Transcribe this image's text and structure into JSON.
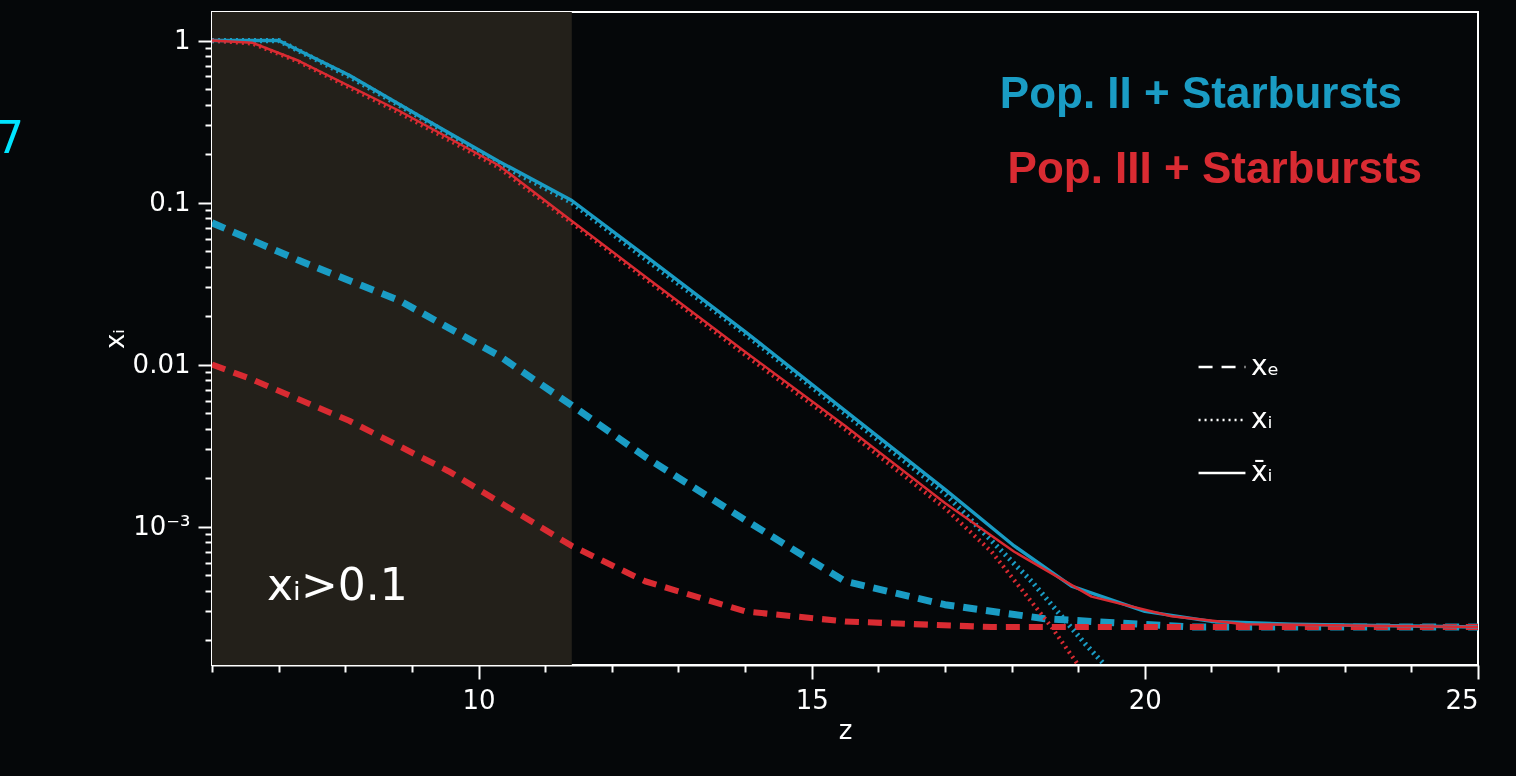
{
  "chart_data": {
    "type": "line",
    "xlabel": "z",
    "ylabel": "xᵢ",
    "log": "y",
    "xlim": [
      6,
      25
    ],
    "ylim": [
      0.00014,
      1.5
    ],
    "xticks": [
      {
        "value": 6,
        "label": null
      },
      {
        "value": 7,
        "label": null
      },
      {
        "value": 8,
        "label": null
      },
      {
        "value": 9,
        "label": null
      },
      10,
      {
        "value": 11,
        "label": null
      },
      {
        "value": 12,
        "label": null
      },
      {
        "value": 13,
        "label": null
      },
      {
        "value": 14,
        "label": null
      },
      15,
      {
        "value": 16,
        "label": null
      },
      {
        "value": 17,
        "label": null
      },
      {
        "value": 18,
        "label": null
      },
      {
        "value": 19,
        "label": null
      },
      20,
      {
        "value": 21,
        "label": null
      },
      {
        "value": 22,
        "label": null
      },
      {
        "value": 23,
        "label": null
      },
      {
        "value": 24,
        "label": null
      },
      25
    ],
    "yticks": [
      {
        "value": 0.0002,
        "label": null
      },
      {
        "value": 0.0003,
        "label": null
      },
      {
        "value": 0.0004,
        "label": null
      },
      {
        "value": 0.0005,
        "label": null
      },
      {
        "value": 0.0006,
        "label": null
      },
      {
        "value": 0.0007,
        "label": null
      },
      {
        "value": 0.0008,
        "label": null
      },
      {
        "value": 0.0009,
        "label": null
      },
      {
        "value": 0.001,
        "label": "10⁻³"
      },
      {
        "value": 0.002,
        "label": null
      },
      {
        "value": 0.003,
        "label": null
      },
      {
        "value": 0.004,
        "label": null
      },
      {
        "value": 0.005,
        "label": null
      },
      {
        "value": 0.006,
        "label": null
      },
      {
        "value": 0.007,
        "label": null
      },
      {
        "value": 0.008,
        "label": null
      },
      {
        "value": 0.009,
        "label": null
      },
      0.01,
      {
        "value": 0.02,
        "label": null
      },
      {
        "value": 0.03,
        "label": null
      },
      {
        "value": 0.04,
        "label": null
      },
      {
        "value": 0.05,
        "label": null
      },
      {
        "value": 0.06,
        "label": null
      },
      {
        "value": 0.07,
        "label": null
      },
      {
        "value": 0.08,
        "label": null
      },
      {
        "value": 0.09,
        "label": null
      },
      0.1,
      {
        "value": 0.2,
        "label": null
      },
      {
        "value": 0.3,
        "label": null
      },
      {
        "value": 0.4,
        "label": null
      },
      {
        "value": 0.5,
        "label": null
      },
      {
        "value": 0.6,
        "label": null
      },
      {
        "value": 0.7,
        "label": null
      },
      {
        "value": 0.8,
        "label": null
      },
      {
        "value": 0.9,
        "label": null
      },
      1
    ],
    "marker": "none",
    "bands": [
      {
        "axis": "x",
        "from": 6,
        "to": 11.4,
        "color": "#23201a"
      }
    ],
    "annotations": [
      "Pop. II + Starbursts",
      "Pop. III + Starbursts",
      "7",
      "xᵢ>0.1",
      "xₑ",
      "xᵢ",
      "x̄ᵢ"
    ],
    "series": [
      {
        "color": "#1a9cc4",
        "line_style": "dashed",
        "x": [
          6,
          7.3,
          8.8,
          10.3,
          11.4,
          12.5,
          14,
          15.5,
          17,
          18.5,
          20.7,
          25
        ],
        "values": [
          0.075,
          0.044,
          0.025,
          0.0114,
          0.0056,
          0.0027,
          0.0011,
          0.00046,
          0.00033,
          0.00027,
          0.00024,
          0.00024
        ]
      },
      {
        "color": "#d92b32",
        "line_style": "dashed",
        "x": [
          6,
          6.57,
          8.06,
          9.55,
          11.4,
          12.5,
          14,
          15.5,
          17.7,
          25
        ],
        "values": [
          0.01,
          0.0082,
          0.0045,
          0.0022,
          0.00076,
          0.00046,
          0.0003,
          0.00026,
          0.00024,
          0.00024
        ]
      },
      {
        "color": "#1a9cc4",
        "line_style": "dotted",
        "x": [
          6,
          7,
          8.06,
          9.1,
          10.3,
          11.4,
          12.5,
          14,
          15.5,
          17,
          18.3,
          19.1,
          19.4
        ],
        "values": [
          1,
          1,
          0.6,
          0.34,
          0.175,
          0.1,
          0.045,
          0.0155,
          0.005,
          0.0016,
          0.00046,
          0.00019,
          0.00014
        ]
      },
      {
        "color": "#d92b32",
        "line_style": "dotted",
        "x": [
          6,
          6.6,
          7.3,
          8.8,
          10.3,
          11.4,
          12.5,
          14,
          15.5,
          17,
          17.7,
          18.6,
          19
        ],
        "values": [
          1,
          0.96,
          0.74,
          0.36,
          0.165,
          0.075,
          0.034,
          0.0115,
          0.004,
          0.0013,
          0.0007,
          0.00024,
          0.00014
        ]
      },
      {
        "color": "#1a9cc4",
        "line_style": "solid",
        "x": [
          6,
          7,
          8.06,
          9.1,
          10.3,
          11.4,
          12.5,
          14,
          15.5,
          17,
          18.04,
          18.9,
          20,
          21,
          22.2,
          25
        ],
        "values": [
          1,
          1,
          0.61,
          0.345,
          0.18,
          0.103,
          0.047,
          0.016,
          0.0052,
          0.0017,
          0.00076,
          0.00043,
          0.0003,
          0.00026,
          0.00025,
          0.00024
        ]
      },
      {
        "color": "#d92b32",
        "line_style": "solid",
        "x": [
          6,
          6.6,
          7.3,
          8.8,
          10.3,
          11.4,
          12.5,
          14,
          15.5,
          17,
          18.04,
          19.2,
          20.4,
          21.5,
          25
        ],
        "values": [
          1,
          0.97,
          0.75,
          0.37,
          0.17,
          0.077,
          0.035,
          0.012,
          0.0042,
          0.0014,
          0.0007,
          0.00037,
          0.00028,
          0.00025,
          0.00024
        ]
      }
    ]
  }
}
